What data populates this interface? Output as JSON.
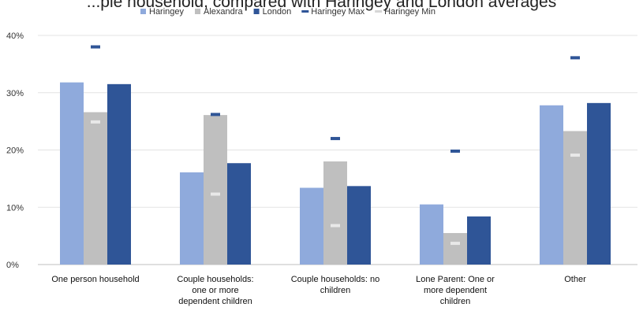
{
  "cut_title": "...ple household, compared with Haringey and London averages",
  "chart_data": {
    "type": "bar",
    "title": "",
    "xlabel": "",
    "ylabel": "",
    "ylim": [
      0,
      40
    ],
    "y_ticks": [
      "0%",
      "10%",
      "20%",
      "30%",
      "40%"
    ],
    "grid": true,
    "legend_position": "top",
    "categories": [
      [
        "One person household"
      ],
      [
        "Couple households:",
        "one or more",
        "dependent children"
      ],
      [
        "Couple households: no",
        "children"
      ],
      [
        "Lone Parent: One or",
        "more dependent",
        "children"
      ],
      [
        "Other"
      ]
    ],
    "series": [
      {
        "name": "Haringey",
        "kind": "bar",
        "color": "#8faadc",
        "values": [
          31.8,
          16.1,
          13.4,
          10.5,
          27.8
        ]
      },
      {
        "name": "Alexandra",
        "kind": "bar",
        "color": "#bfbfbf",
        "values": [
          26.6,
          26.1,
          18.0,
          5.5,
          23.3
        ]
      },
      {
        "name": "London",
        "kind": "bar",
        "color": "#2f5597",
        "values": [
          31.5,
          17.7,
          13.7,
          8.4,
          28.2
        ]
      },
      {
        "name": "Haringey Max",
        "kind": "marker",
        "color": "#2f5597",
        "values": [
          38.0,
          26.2,
          22.0,
          19.8,
          36.1
        ]
      },
      {
        "name": "Haringey Min",
        "kind": "marker",
        "color": "#e8e8e8",
        "values": [
          24.9,
          12.3,
          6.8,
          3.7,
          19.1
        ]
      }
    ]
  }
}
